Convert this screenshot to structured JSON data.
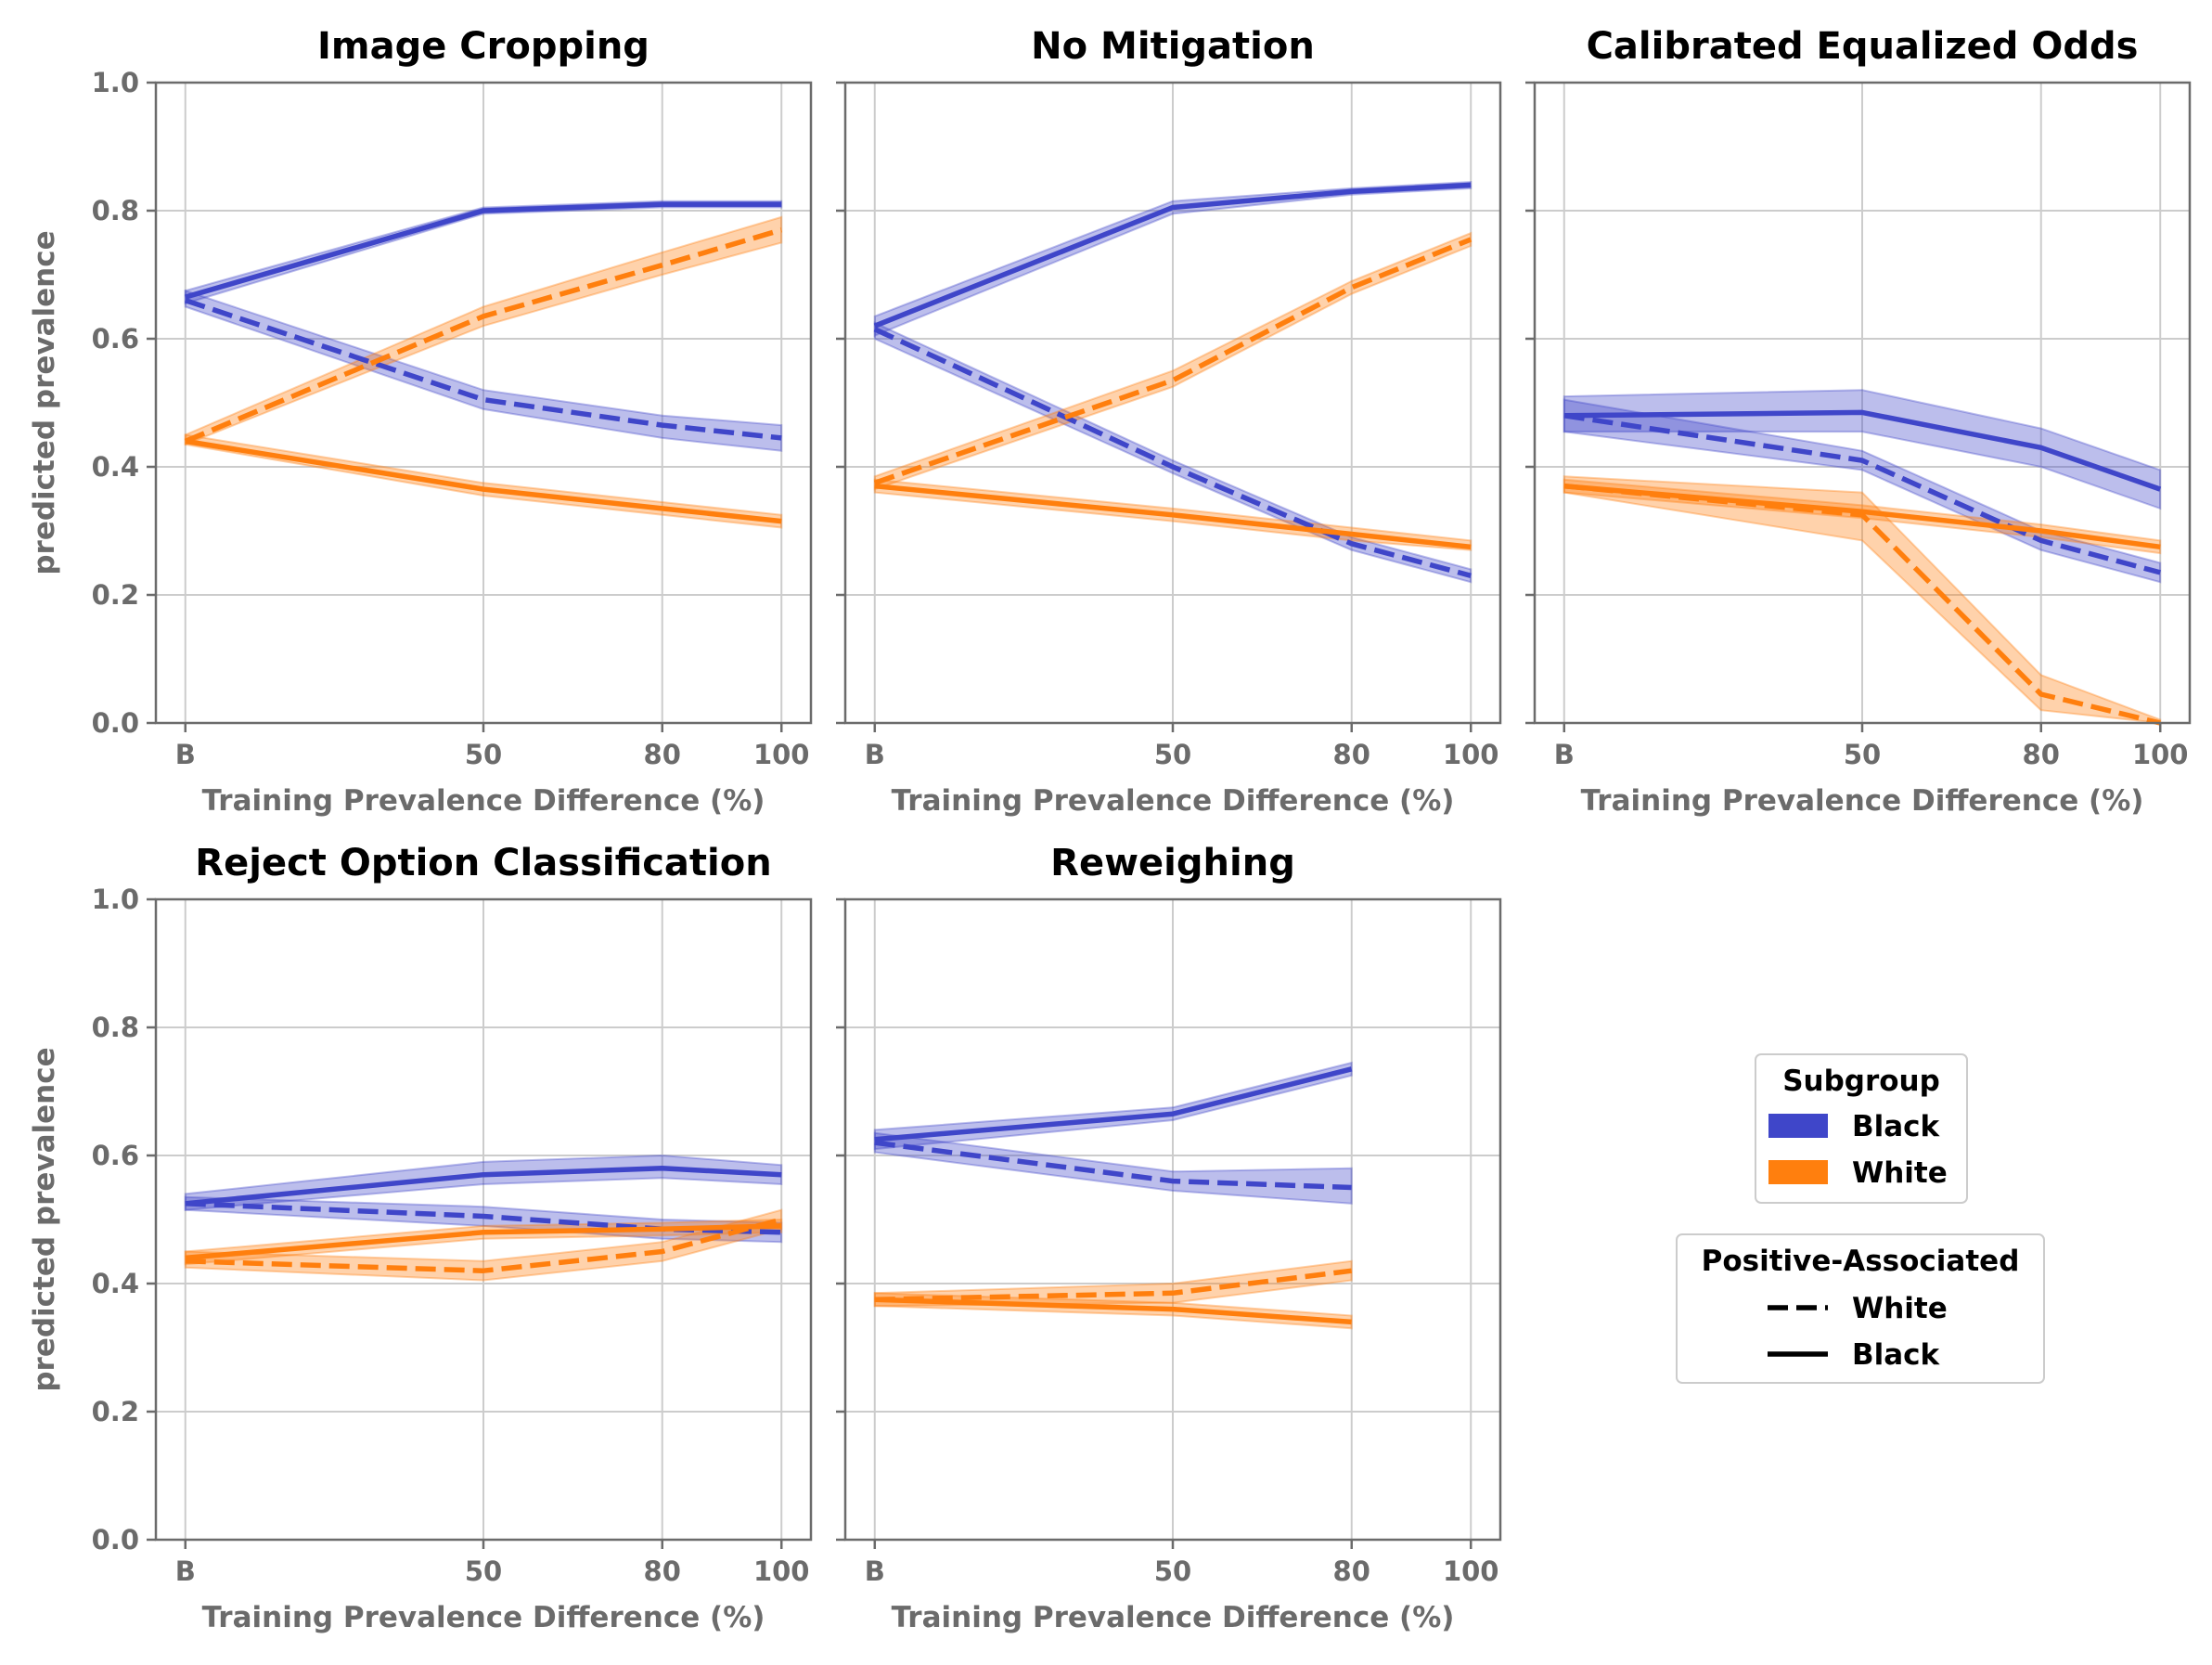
{
  "chart_data": [
    {
      "type": "line",
      "title": "Image Cropping",
      "xlabel": "Training Prevalence Difference (%)",
      "ylabel": "predicted prevalence",
      "x_ticks": [
        "B",
        "50",
        "80",
        "100"
      ],
      "y_ticks": [
        "0.0",
        "0.2",
        "0.4",
        "0.6",
        "0.8",
        "1.0"
      ],
      "ylim": [
        0,
        1
      ],
      "grid": true,
      "series": [
        {
          "subgroup": "Black",
          "positive_associated": "Black",
          "x": [
            "B",
            "50",
            "80",
            "100"
          ],
          "values": [
            0.665,
            0.8,
            0.81,
            0.81
          ],
          "band": [
            [
              0.655,
              0.675
            ],
            [
              0.795,
              0.805
            ],
            [
              0.805,
              0.815
            ],
            [
              0.805,
              0.815
            ]
          ]
        },
        {
          "subgroup": "Black",
          "positive_associated": "White",
          "x": [
            "B",
            "50",
            "80",
            "100"
          ],
          "values": [
            0.66,
            0.505,
            0.465,
            0.445
          ],
          "band": [
            [
              0.65,
              0.675
            ],
            [
              0.49,
              0.52
            ],
            [
              0.445,
              0.48
            ],
            [
              0.425,
              0.465
            ]
          ]
        },
        {
          "subgroup": "White",
          "positive_associated": "White",
          "x": [
            "B",
            "50",
            "80",
            "100"
          ],
          "values": [
            0.44,
            0.635,
            0.715,
            0.77
          ],
          "band": [
            [
              0.435,
              0.45
            ],
            [
              0.62,
              0.65
            ],
            [
              0.7,
              0.735
            ],
            [
              0.75,
              0.79
            ]
          ]
        },
        {
          "subgroup": "White",
          "positive_associated": "Black",
          "x": [
            "B",
            "50",
            "80",
            "100"
          ],
          "values": [
            0.44,
            0.365,
            0.335,
            0.315
          ],
          "band": [
            [
              0.435,
              0.45
            ],
            [
              0.355,
              0.375
            ],
            [
              0.325,
              0.345
            ],
            [
              0.305,
              0.325
            ]
          ]
        }
      ]
    },
    {
      "type": "line",
      "title": "No Mitigation",
      "xlabel": "Training Prevalence Difference (%)",
      "ylabel": "",
      "x_ticks": [
        "B",
        "50",
        "80",
        "100"
      ],
      "y_ticks": [
        "0.0",
        "0.2",
        "0.4",
        "0.6",
        "0.8",
        "1.0"
      ],
      "ylim": [
        0,
        1
      ],
      "grid": true,
      "series": [
        {
          "subgroup": "Black",
          "positive_associated": "Black",
          "x": [
            "B",
            "50",
            "80",
            "100"
          ],
          "values": [
            0.62,
            0.805,
            0.83,
            0.84
          ],
          "band": [
            [
              0.605,
              0.635
            ],
            [
              0.795,
              0.815
            ],
            [
              0.825,
              0.835
            ],
            [
              0.835,
              0.845
            ]
          ]
        },
        {
          "subgroup": "Black",
          "positive_associated": "White",
          "x": [
            "B",
            "50",
            "80",
            "100"
          ],
          "values": [
            0.615,
            0.4,
            0.28,
            0.23
          ],
          "band": [
            [
              0.6,
              0.625
            ],
            [
              0.39,
              0.41
            ],
            [
              0.27,
              0.29
            ],
            [
              0.22,
              0.24
            ]
          ]
        },
        {
          "subgroup": "White",
          "positive_associated": "White",
          "x": [
            "B",
            "50",
            "80",
            "100"
          ],
          "values": [
            0.375,
            0.535,
            0.68,
            0.755
          ],
          "band": [
            [
              0.365,
              0.385
            ],
            [
              0.525,
              0.55
            ],
            [
              0.67,
              0.69
            ],
            [
              0.745,
              0.765
            ]
          ]
        },
        {
          "subgroup": "White",
          "positive_associated": "Black",
          "x": [
            "B",
            "50",
            "80",
            "100"
          ],
          "values": [
            0.37,
            0.325,
            0.295,
            0.275
          ],
          "band": [
            [
              0.36,
              0.38
            ],
            [
              0.315,
              0.335
            ],
            [
              0.285,
              0.305
            ],
            [
              0.27,
              0.285
            ]
          ]
        }
      ]
    },
    {
      "type": "line",
      "title": "Calibrated Equalized Odds",
      "xlabel": "Training Prevalence Difference (%)",
      "ylabel": "",
      "x_ticks": [
        "B",
        "50",
        "80",
        "100"
      ],
      "y_ticks": [
        "0.0",
        "0.2",
        "0.4",
        "0.6",
        "0.8",
        "1.0"
      ],
      "ylim": [
        0,
        1
      ],
      "grid": true,
      "series": [
        {
          "subgroup": "Black",
          "positive_associated": "Black",
          "x": [
            "B",
            "50",
            "80",
            "100"
          ],
          "values": [
            0.48,
            0.485,
            0.43,
            0.365
          ],
          "band": [
            [
              0.455,
              0.51
            ],
            [
              0.455,
              0.52
            ],
            [
              0.4,
              0.46
            ],
            [
              0.335,
              0.395
            ]
          ]
        },
        {
          "subgroup": "Black",
          "positive_associated": "White",
          "x": [
            "B",
            "50",
            "80",
            "100"
          ],
          "values": [
            0.48,
            0.41,
            0.285,
            0.235
          ],
          "band": [
            [
              0.455,
              0.505
            ],
            [
              0.395,
              0.425
            ],
            [
              0.27,
              0.3
            ],
            [
              0.22,
              0.25
            ]
          ]
        },
        {
          "subgroup": "White",
          "positive_associated": "White",
          "x": [
            "B",
            "50",
            "80",
            "100"
          ],
          "values": [
            0.37,
            0.325,
            0.045,
            0.0
          ],
          "band": [
            [
              0.36,
              0.385
            ],
            [
              0.285,
              0.36
            ],
            [
              0.02,
              0.075
            ],
            [
              0.0,
              0.005
            ]
          ]
        },
        {
          "subgroup": "White",
          "positive_associated": "Black",
          "x": [
            "B",
            "50",
            "80",
            "100"
          ],
          "values": [
            0.37,
            0.33,
            0.3,
            0.275
          ],
          "band": [
            [
              0.36,
              0.38
            ],
            [
              0.32,
              0.34
            ],
            [
              0.29,
              0.31
            ],
            [
              0.265,
              0.285
            ]
          ]
        }
      ]
    },
    {
      "type": "line",
      "title": "Reject Option Classification",
      "xlabel": "Training Prevalence Difference (%)",
      "ylabel": "predicted prevalence",
      "x_ticks": [
        "B",
        "50",
        "80",
        "100"
      ],
      "y_ticks": [
        "0.0",
        "0.2",
        "0.4",
        "0.6",
        "0.8",
        "1.0"
      ],
      "ylim": [
        0,
        1
      ],
      "grid": true,
      "series": [
        {
          "subgroup": "Black",
          "positive_associated": "Black",
          "x": [
            "B",
            "50",
            "80",
            "100"
          ],
          "values": [
            0.525,
            0.57,
            0.58,
            0.57
          ],
          "band": [
            [
              0.515,
              0.54
            ],
            [
              0.555,
              0.59
            ],
            [
              0.565,
              0.6
            ],
            [
              0.555,
              0.585
            ]
          ]
        },
        {
          "subgroup": "Black",
          "positive_associated": "White",
          "x": [
            "B",
            "50",
            "80",
            "100"
          ],
          "values": [
            0.525,
            0.505,
            0.485,
            0.48
          ],
          "band": [
            [
              0.515,
              0.535
            ],
            [
              0.49,
              0.52
            ],
            [
              0.47,
              0.5
            ],
            [
              0.465,
              0.495
            ]
          ]
        },
        {
          "subgroup": "White",
          "positive_associated": "White",
          "x": [
            "B",
            "50",
            "80",
            "100"
          ],
          "values": [
            0.435,
            0.42,
            0.45,
            0.5
          ],
          "band": [
            [
              0.425,
              0.45
            ],
            [
              0.405,
              0.435
            ],
            [
              0.435,
              0.465
            ],
            [
              0.485,
              0.515
            ]
          ]
        },
        {
          "subgroup": "White",
          "positive_associated": "Black",
          "x": [
            "B",
            "50",
            "80",
            "100"
          ],
          "values": [
            0.44,
            0.48,
            0.485,
            0.49
          ],
          "band": [
            [
              0.43,
              0.45
            ],
            [
              0.47,
              0.49
            ],
            [
              0.475,
              0.495
            ],
            [
              0.48,
              0.5
            ]
          ]
        }
      ]
    },
    {
      "type": "line",
      "title": "Reweighing",
      "xlabel": "Training Prevalence Difference (%)",
      "ylabel": "",
      "x_ticks": [
        "B",
        "50",
        "80",
        "100"
      ],
      "y_ticks": [
        "0.0",
        "0.2",
        "0.4",
        "0.6",
        "0.8",
        "1.0"
      ],
      "ylim": [
        0,
        1
      ],
      "grid": true,
      "series": [
        {
          "subgroup": "Black",
          "positive_associated": "Black",
          "x": [
            "B",
            "50",
            "80"
          ],
          "values": [
            0.625,
            0.665,
            0.735
          ],
          "band": [
            [
              0.61,
              0.64
            ],
            [
              0.655,
              0.675
            ],
            [
              0.725,
              0.745
            ]
          ]
        },
        {
          "subgroup": "Black",
          "positive_associated": "White",
          "x": [
            "B",
            "50",
            "80"
          ],
          "values": [
            0.62,
            0.56,
            0.55
          ],
          "band": [
            [
              0.605,
              0.635
            ],
            [
              0.545,
              0.575
            ],
            [
              0.525,
              0.58
            ]
          ]
        },
        {
          "subgroup": "White",
          "positive_associated": "White",
          "x": [
            "B",
            "50",
            "80"
          ],
          "values": [
            0.375,
            0.385,
            0.42
          ],
          "band": [
            [
              0.365,
              0.385
            ],
            [
              0.37,
              0.4
            ],
            [
              0.405,
              0.435
            ]
          ]
        },
        {
          "subgroup": "White",
          "positive_associated": "Black",
          "x": [
            "B",
            "50",
            "80"
          ],
          "values": [
            0.375,
            0.36,
            0.34
          ],
          "band": [
            [
              0.365,
              0.385
            ],
            [
              0.35,
              0.37
            ],
            [
              0.33,
              0.35
            ]
          ]
        }
      ]
    }
  ],
  "legend": {
    "placement": "right",
    "subgroup": {
      "title": "Subgroup",
      "items": [
        {
          "label": "Black",
          "color": "#3f46c9"
        },
        {
          "label": "White",
          "color": "#ff7f0e"
        }
      ]
    },
    "positive_associated": {
      "title": "Positive-Associated",
      "items": [
        {
          "label": "White",
          "style": "dashed"
        },
        {
          "label": "Black",
          "style": "solid"
        }
      ]
    }
  },
  "colors": {
    "Black": "#3f46c9",
    "White": "#ff7f0e",
    "axis": "#6b6b6b",
    "grid": "#cccccc"
  }
}
